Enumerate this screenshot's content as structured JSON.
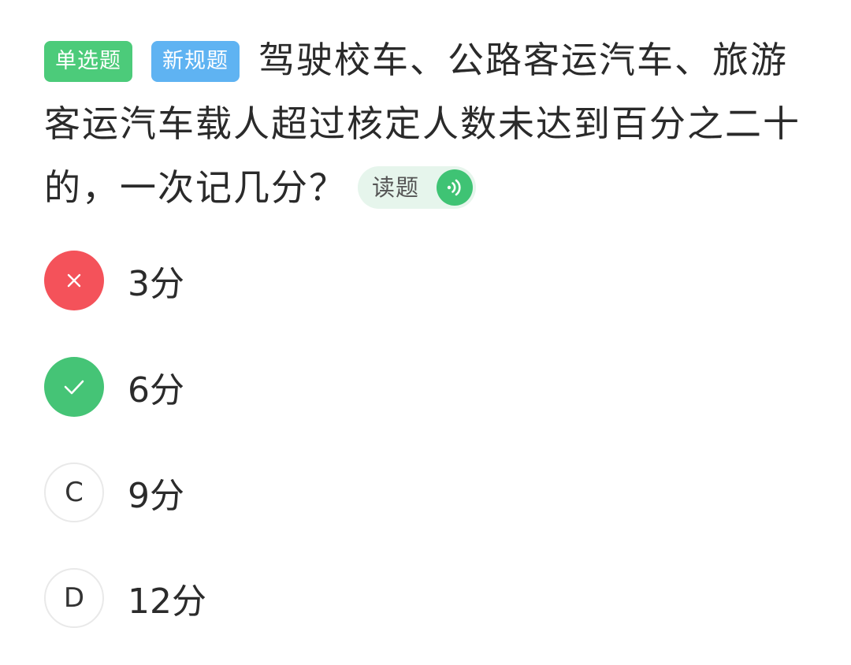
{
  "question": {
    "tags": [
      {
        "label": "单选题",
        "color": "#4ccb7a"
      },
      {
        "label": "新规题",
        "color": "#5fb3f2"
      }
    ],
    "text": "驾驶校车、公路客运汽车、旅游客运汽车载人超过核定人数未达到百分之二十的，一次记几分？",
    "read_button": {
      "label": "读题",
      "icon": "speaker-icon"
    }
  },
  "options": [
    {
      "marker": "close-icon",
      "state": "wrong",
      "text": "3分"
    },
    {
      "marker": "check-icon",
      "state": "correct",
      "text": "6分"
    },
    {
      "marker": "C",
      "state": "unselected",
      "text": "9分"
    },
    {
      "marker": "D",
      "state": "unselected",
      "text": "12分"
    }
  ],
  "colors": {
    "wrong": "#f4525a",
    "correct": "#45c476",
    "accent_green": "#3fc374"
  }
}
